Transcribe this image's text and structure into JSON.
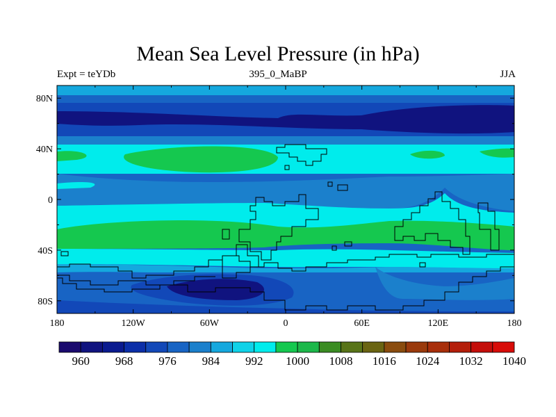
{
  "chart_data": {
    "type": "heatmap",
    "title": "Mean Sea Level Pressure (in hPa)",
    "subtitle_left": "Expt = teYDb",
    "subtitle_center": "395_0_MaBP",
    "subtitle_right": "JJA",
    "x_ticks": [
      "180",
      "120W",
      "60W",
      "0",
      "60E",
      "120E",
      "180"
    ],
    "y_ticks": [
      "80N",
      "40N",
      "0",
      "40S",
      "80S"
    ],
    "xlim": [
      -180,
      180
    ],
    "ylim": [
      -90,
      90
    ],
    "colorbar_levels": [
      960,
      964,
      968,
      972,
      976,
      980,
      984,
      988,
      992,
      996,
      1000,
      1004,
      1008,
      1012,
      1016,
      1020,
      1024,
      1028,
      1032,
      1036,
      1040
    ],
    "colorbar_labels": [
      "960",
      "968",
      "976",
      "984",
      "992",
      "1000",
      "1008",
      "1016",
      "1024",
      "1032",
      "1040"
    ],
    "colorbar_colors": [
      "#1a0a6e",
      "#10137f",
      "#0a1a8f",
      "#0b2ea8",
      "#1248b8",
      "#1864c4",
      "#1b80cc",
      "#15a8de",
      "#0fd2e8",
      "#00ecec",
      "#15c84f",
      "#1cb84a",
      "#3a8c22",
      "#587418",
      "#6a6412",
      "#8a4c0e",
      "#9a3a0c",
      "#a82e0a",
      "#b41e0a",
      "#c40e0a",
      "#d80c08"
    ]
  }
}
